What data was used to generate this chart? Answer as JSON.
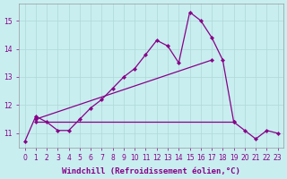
{
  "xlabel": "Windchill (Refroidissement éolien,°C)",
  "x": [
    0,
    1,
    2,
    3,
    4,
    5,
    6,
    7,
    8,
    9,
    10,
    11,
    12,
    13,
    14,
    15,
    16,
    17,
    18,
    19,
    20,
    21,
    22,
    23
  ],
  "line1_y": [
    10.7,
    11.6,
    11.4,
    11.1,
    11.1,
    11.5,
    11.9,
    12.2,
    12.6,
    13.0,
    13.3,
    13.8,
    14.3,
    14.1,
    13.5,
    15.3,
    15.0,
    14.4,
    13.6,
    11.4,
    11.1,
    10.8,
    11.1,
    11.0
  ],
  "line2_x": [
    1,
    19
  ],
  "line2_y": [
    11.4,
    11.4
  ],
  "line3_x": [
    1,
    17
  ],
  "line3_y": [
    11.5,
    13.6
  ],
  "line_color": "#880088",
  "bg_color": "#c8eef0",
  "grid_color": "#b0d8d8",
  "ylim": [
    10.5,
    15.6
  ],
  "xlim": [
    -0.5,
    23.5
  ],
  "yticks": [
    11,
    12,
    13,
    14,
    15
  ],
  "xticks": [
    0,
    1,
    2,
    3,
    4,
    5,
    6,
    7,
    8,
    9,
    10,
    11,
    12,
    13,
    14,
    15,
    16,
    17,
    18,
    19,
    20,
    21,
    22,
    23
  ],
  "tick_fontsize": 5.5,
  "label_fontsize": 6.5,
  "marker": "D",
  "markersize": 2.2,
  "linewidth": 0.9
}
